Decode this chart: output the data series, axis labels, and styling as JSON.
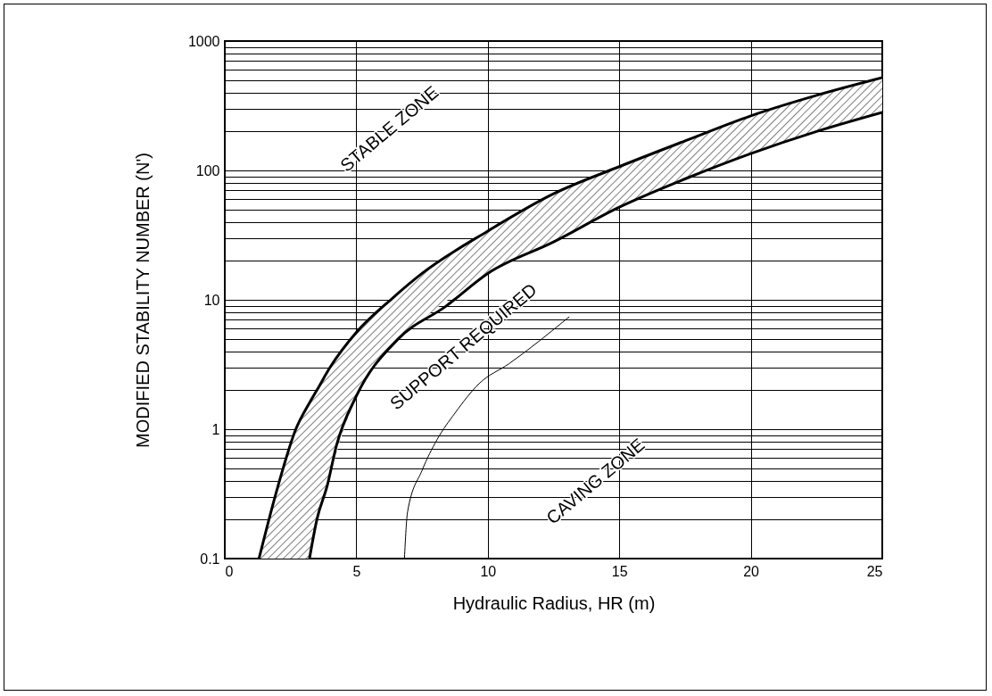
{
  "chart_data": {
    "type": "line",
    "xlabel": "Hydraulic Radius, HR (m)",
    "ylabel": "MODIFIED STABILITY NUMBER  (N')",
    "series": [
      {
        "color": "#000000",
        "x": [
          1.3,
          2,
          2.7,
          3.22,
          3.5,
          4,
          5,
          6.4,
          7.5,
          10,
          12.5,
          15,
          17.5,
          20,
          22.5,
          25
        ],
        "values": [
          0.1,
          0.35,
          1.0,
          1.6,
          2.0,
          3.0,
          5.6,
          10.4,
          16,
          34,
          66,
          107,
          169,
          264,
          380,
          521
        ],
        "lower": [
          0.1,
          0.1,
          0.1,
          0.1,
          0.2,
          0.45,
          1.8,
          4.5,
          7,
          16,
          28,
          52,
          86,
          135,
          200,
          281
        ],
        "upper": [
          0.1,
          0.35,
          1.0,
          1.6,
          2.0,
          3.0,
          5.6,
          10.4,
          16,
          34,
          66,
          107,
          169,
          264,
          380,
          521
        ]
      },
      {
        "color": "#000000",
        "x": [
          3.22,
          3.5,
          3.9,
          4.24,
          5,
          6.6,
          8.4,
          10,
          12.5,
          15,
          17.5,
          20,
          22.5,
          25
        ],
        "values": [
          0.1,
          0.2,
          0.37,
          0.74,
          1.8,
          5.0,
          8.9,
          16,
          28,
          52,
          86,
          135,
          200,
          281
        ]
      },
      {
        "color": "#000000",
        "x": [
          6.83,
          6.95,
          7.5,
          8.07,
          8.75,
          9.67,
          10.8,
          13.1
        ],
        "values": [
          0.1,
          0.23,
          0.48,
          0.83,
          1.33,
          2.25,
          3.2,
          7.4
        ]
      }
    ],
    "annotations": [
      "STABLE ZONE",
      "SUPPORT REQUIRED",
      "CAVING ZONE"
    ],
    "log": "y",
    "grid": true,
    "marker": "none",
    "line_style": "solid",
    "xlim": [
      0,
      25
    ],
    "xticks": [
      0,
      5,
      10,
      15,
      20,
      25
    ],
    "ylim": [
      0.1,
      1000
    ],
    "yticks": [
      0.1,
      {
        "value": 0.2,
        "label": null
      },
      {
        "value": 0.3,
        "label": null
      },
      {
        "value": 0.4,
        "label": null
      },
      {
        "value": 0.5,
        "label": null
      },
      {
        "value": 0.6,
        "label": null
      },
      {
        "value": 0.7,
        "label": null
      },
      {
        "value": 0.8,
        "label": null
      },
      {
        "value": 0.9,
        "label": null
      },
      1,
      {
        "value": 2,
        "label": null
      },
      {
        "value": 3,
        "label": null
      },
      {
        "value": 4,
        "label": null
      },
      {
        "value": 5,
        "label": null
      },
      {
        "value": 6,
        "label": null
      },
      {
        "value": 7,
        "label": null
      },
      {
        "value": 8,
        "label": null
      },
      {
        "value": 9,
        "label": null
      },
      10,
      {
        "value": 20,
        "label": null
      },
      {
        "value": 30,
        "label": null
      },
      {
        "value": 40,
        "label": null
      },
      {
        "value": 50,
        "label": null
      },
      {
        "value": 60,
        "label": null
      },
      {
        "value": 70,
        "label": null
      },
      {
        "value": 80,
        "label": null
      },
      {
        "value": 90,
        "label": null
      },
      100,
      {
        "value": 200,
        "label": null
      },
      {
        "value": 300,
        "label": null
      },
      {
        "value": 400,
        "label": null
      },
      {
        "value": 500,
        "label": null
      },
      {
        "value": 600,
        "label": null
      },
      {
        "value": 700,
        "label": null
      },
      {
        "value": 800,
        "label": null
      },
      {
        "value": 900,
        "label": null
      },
      1000
    ]
  }
}
